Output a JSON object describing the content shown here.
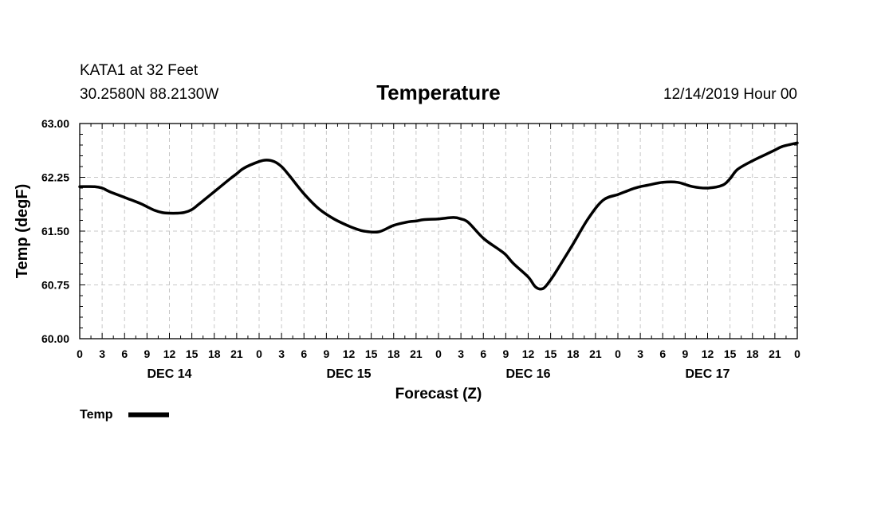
{
  "header": {
    "station": "KATA1 at 32 Feet",
    "coords": "30.2580N 88.2130W",
    "title": "Temperature",
    "issued": "12/14/2019 Hour 00"
  },
  "legend": {
    "label": "Temp"
  },
  "chart_data": {
    "type": "line",
    "title": "Temperature",
    "xlabel": "Forecast (Z)",
    "ylabel": "Temp (degF)",
    "ylim": [
      60.0,
      63.0
    ],
    "yticks": [
      "60.00",
      "60.75",
      "61.50",
      "62.25",
      "63.00"
    ],
    "ytick_values": [
      60.0,
      60.75,
      61.5,
      62.25,
      63.0
    ],
    "xlim_hours": [
      0,
      96
    ],
    "xtick_labels": [
      "0",
      "3",
      "6",
      "9",
      "12",
      "15",
      "18",
      "21",
      "0",
      "3",
      "6",
      "9",
      "12",
      "15",
      "18",
      "21",
      "0",
      "3",
      "6",
      "9",
      "12",
      "15",
      "18",
      "21",
      "0",
      "3",
      "6",
      "9",
      "12",
      "15",
      "18",
      "21",
      "0"
    ],
    "day_labels": [
      {
        "label": "DEC 14",
        "hour": 12
      },
      {
        "label": "DEC 15",
        "hour": 36
      },
      {
        "label": "DEC 16",
        "hour": 60
      },
      {
        "label": "DEC 17",
        "hour": 84
      }
    ],
    "grid": true,
    "series": [
      {
        "name": "Temp",
        "color": "#000000",
        "x": [
          0,
          2,
          3,
          4,
          6,
          8,
          9,
          10,
          11,
          12,
          13,
          14,
          15,
          16,
          18,
          20,
          21,
          22,
          24,
          25,
          26,
          27,
          28,
          30,
          32,
          34,
          36,
          37,
          38,
          40,
          42,
          44,
          45,
          46,
          48,
          50,
          51,
          52,
          54,
          56,
          57,
          58,
          60,
          61,
          62,
          63,
          64,
          66,
          68,
          70,
          72,
          73,
          74,
          75,
          76,
          78,
          80,
          82,
          84,
          86,
          87,
          88,
          90,
          92,
          93,
          94,
          96
        ],
        "values": [
          62.12,
          62.12,
          62.1,
          62.05,
          61.97,
          61.89,
          61.84,
          61.79,
          61.76,
          61.75,
          61.75,
          61.76,
          61.8,
          61.88,
          62.05,
          62.22,
          62.3,
          62.38,
          62.47,
          62.49,
          62.47,
          62.4,
          62.28,
          62.02,
          61.81,
          61.67,
          61.57,
          61.53,
          61.5,
          61.49,
          61.58,
          61.63,
          61.64,
          61.66,
          61.67,
          61.69,
          61.67,
          61.62,
          61.4,
          61.25,
          61.17,
          61.05,
          60.86,
          60.72,
          60.7,
          60.82,
          60.98,
          61.32,
          61.67,
          61.93,
          62.01,
          62.05,
          62.09,
          62.12,
          62.14,
          62.18,
          62.18,
          62.12,
          62.1,
          62.14,
          62.23,
          62.36,
          62.48,
          62.58,
          62.63,
          62.68,
          62.73
        ]
      }
    ]
  }
}
